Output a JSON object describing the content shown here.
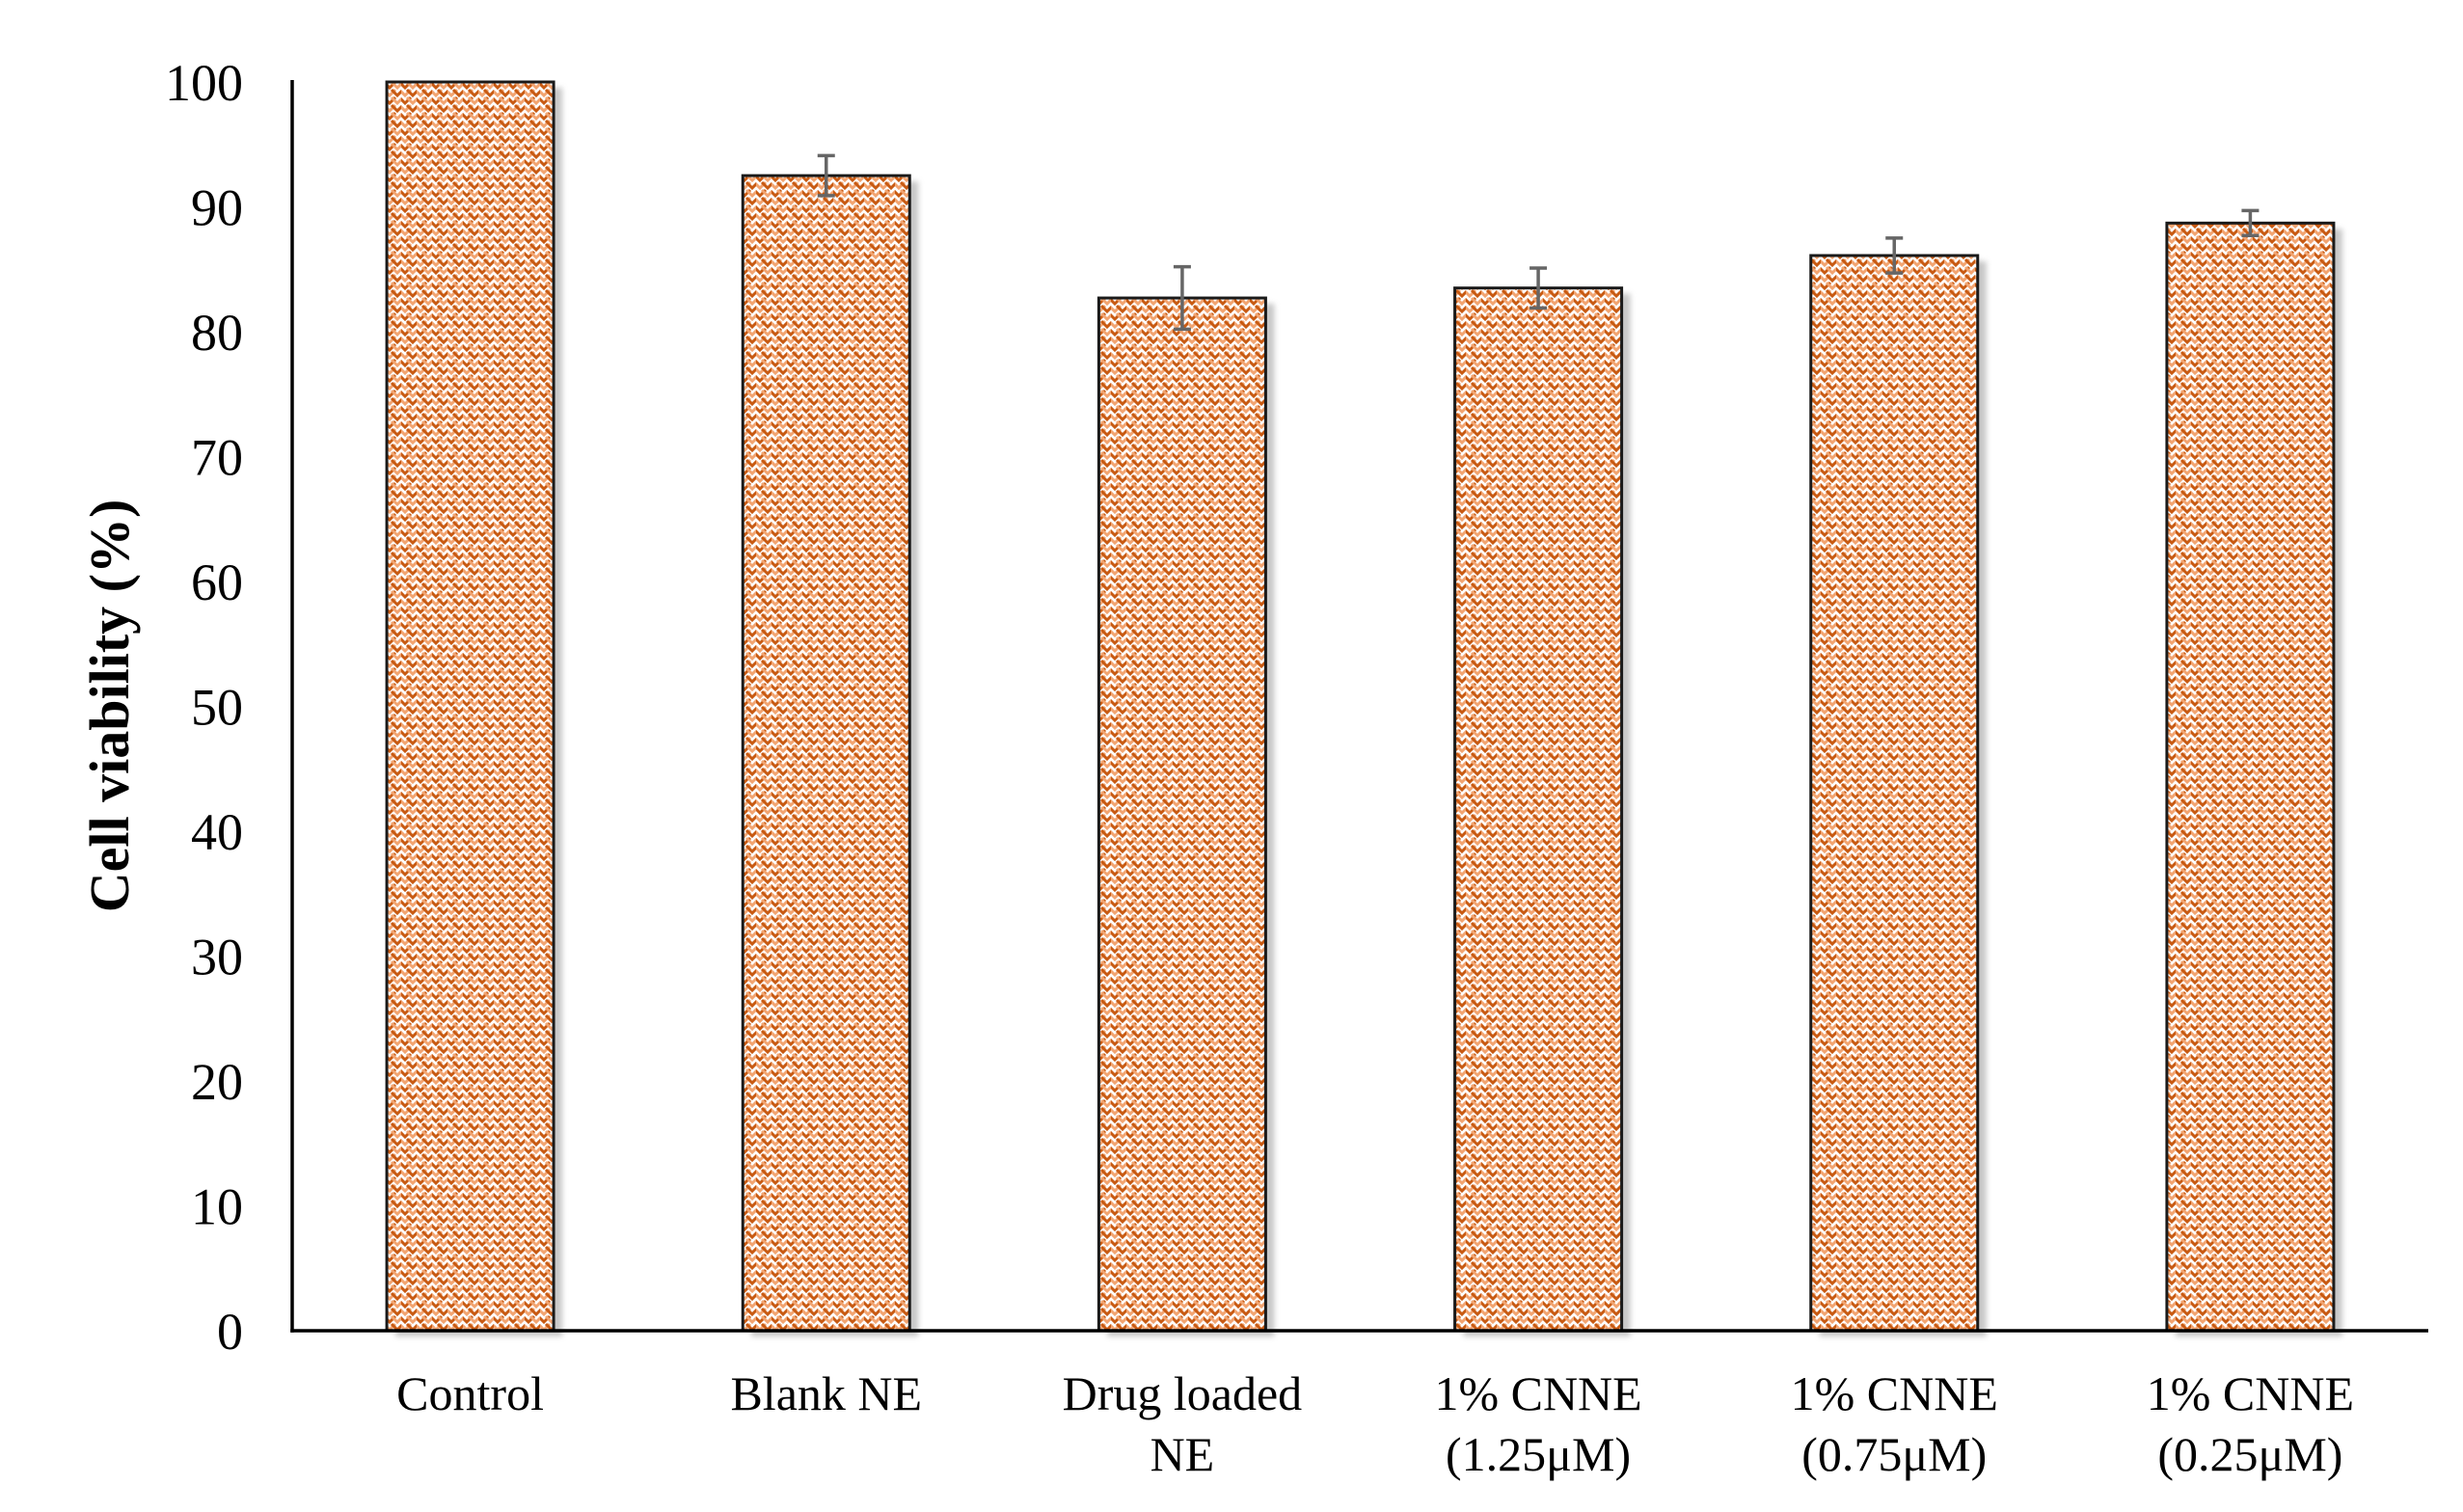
{
  "chart_data": {
    "type": "bar",
    "title": "",
    "ylabel": "Cell viability (%)",
    "xlabel": "",
    "ylim": [
      0,
      100
    ],
    "yticks": [
      0,
      10,
      20,
      30,
      40,
      50,
      60,
      70,
      80,
      90,
      100
    ],
    "grid": false,
    "legend": "none",
    "categories": [
      "Control",
      "Blank NE",
      "Drug loaded NE",
      "1% CNNE (1.25μM)",
      "1% CNNE (0.75μM)",
      "1% CNNE (0.25μM)"
    ],
    "category_lines": [
      [
        "Control"
      ],
      [
        "Blank NE"
      ],
      [
        "Drug loaded",
        "NE"
      ],
      [
        "1% CNNE",
        "(1.25μM)"
      ],
      [
        "1% CNNE",
        "(0.75μM)"
      ],
      [
        "1% CNNE",
        "(0.25μM)"
      ]
    ],
    "series": [
      {
        "name": "Cell viability",
        "values": [
          100,
          92.5,
          82.7,
          83.5,
          86.1,
          88.7
        ],
        "errors": [
          0,
          1.6,
          2.5,
          1.6,
          1.4,
          1.0
        ]
      }
    ],
    "colors": {
      "bar_pattern_dark": "#c85a12",
      "bar_pattern_light": "#f2a470",
      "bar_background": "#ffffff",
      "bar_outline": "#1a1a1a",
      "error_bar": "#666666",
      "axis": "#000000",
      "text": "#000000",
      "shadow": "#9a9a9a"
    }
  }
}
